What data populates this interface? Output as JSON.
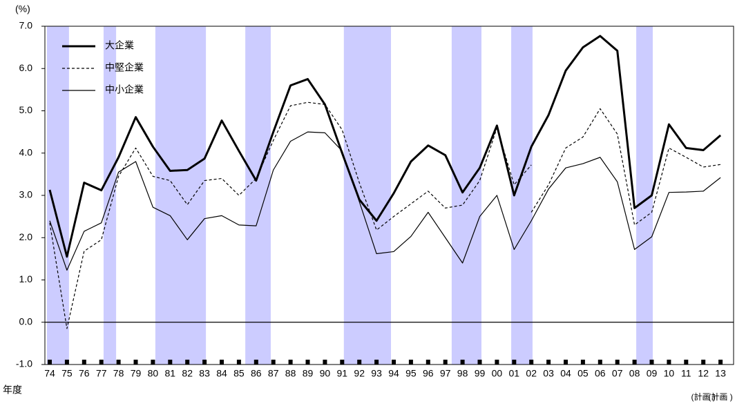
{
  "chart_data": {
    "type": "line",
    "y_axis_label": "(%)",
    "x_axis_label": "年度",
    "categories": [
      "74",
      "75",
      "76",
      "77",
      "78",
      "79",
      "80",
      "81",
      "82",
      "83",
      "84",
      "85",
      "86",
      "87",
      "88",
      "89",
      "90",
      "91",
      "92",
      "93",
      "94",
      "95",
      "96",
      "97",
      "98",
      "99",
      "00",
      "01",
      "02",
      "03",
      "04",
      "05",
      "06",
      "07",
      "08",
      "09",
      "10",
      "11",
      "12",
      "13"
    ],
    "category_notes": [
      "(計画 )",
      "(計画 )"
    ],
    "ylim": [
      -1,
      7
    ],
    "yticks": [
      {
        "value": -1,
        "label": "-1.0"
      },
      {
        "value": 0,
        "label": "0.0"
      },
      {
        "value": 1,
        "label": "1.0"
      },
      {
        "value": 2,
        "label": "2.0"
      },
      {
        "value": 3,
        "label": "3.0"
      },
      {
        "value": 4,
        "label": "4.0"
      },
      {
        "value": 5,
        "label": "5.0"
      },
      {
        "value": 6,
        "label": "6.0"
      },
      {
        "value": 7,
        "label": "7.0"
      }
    ],
    "shaded_periods": [
      [
        -0.16,
        1.12
      ],
      [
        3.13,
        3.86
      ],
      [
        6.14,
        9.08
      ],
      [
        11.37,
        12.85
      ],
      [
        17.1,
        19.84
      ],
      [
        23.37,
        25.1
      ],
      [
        26.83,
        28.07
      ],
      [
        34.1,
        35.06
      ]
    ],
    "shade_color": "#ccccff",
    "legend": "top-left",
    "series": [
      {
        "name": "大企業",
        "color": "#000000",
        "style": "bold",
        "values": [
          3.13,
          1.55,
          3.3,
          3.12,
          3.9,
          4.85,
          4.15,
          3.58,
          3.6,
          3.87,
          4.77,
          4.05,
          3.35,
          4.5,
          5.6,
          5.75,
          5.15,
          4.0,
          2.9,
          2.4,
          3.05,
          3.8,
          4.18,
          3.95,
          3.07,
          3.65,
          4.65,
          3.0,
          4.15,
          4.9,
          5.95,
          6.5,
          6.77,
          6.42,
          2.7,
          3.0,
          4.68,
          4.12,
          4.07,
          4.42
        ]
      },
      {
        "name": "中堅企業",
        "color": "#000000",
        "style": "dashed",
        "values": [
          2.35,
          -0.15,
          1.68,
          1.95,
          3.45,
          4.12,
          3.45,
          3.35,
          2.78,
          3.35,
          3.4,
          3.0,
          3.4,
          4.3,
          5.12,
          5.2,
          5.15,
          4.55,
          3.3,
          2.18,
          2.5,
          2.8,
          3.1,
          2.7,
          2.77,
          3.35,
          4.6,
          3.25,
          3.72,
          null,
          null,
          null,
          null,
          null,
          null,
          null,
          null,
          null,
          null,
          null
        ],
        "values_after_break": [
          null,
          null,
          null,
          null,
          null,
          null,
          null,
          null,
          null,
          null,
          null,
          null,
          null,
          null,
          null,
          null,
          null,
          null,
          null,
          null,
          null,
          null,
          null,
          null,
          null,
          null,
          null,
          null,
          2.6,
          3.25,
          4.12,
          4.38,
          5.05,
          4.45,
          2.3,
          2.6,
          4.12,
          3.9,
          3.67,
          3.73
        ]
      },
      {
        "name": "中小企業",
        "color": "#000000",
        "style": "thin",
        "values": [
          2.4,
          1.23,
          2.15,
          2.35,
          3.55,
          3.8,
          2.72,
          2.52,
          1.95,
          2.45,
          2.52,
          2.3,
          2.28,
          3.6,
          4.28,
          4.5,
          4.48,
          4.05,
          2.85,
          1.62,
          1.67,
          2.03,
          2.6,
          2.0,
          1.4,
          2.5,
          3.0,
          1.72,
          2.4,
          3.15,
          3.65,
          3.75,
          3.9,
          3.32,
          1.72,
          2.02,
          3.07,
          3.08,
          3.1,
          3.42
        ]
      }
    ]
  }
}
